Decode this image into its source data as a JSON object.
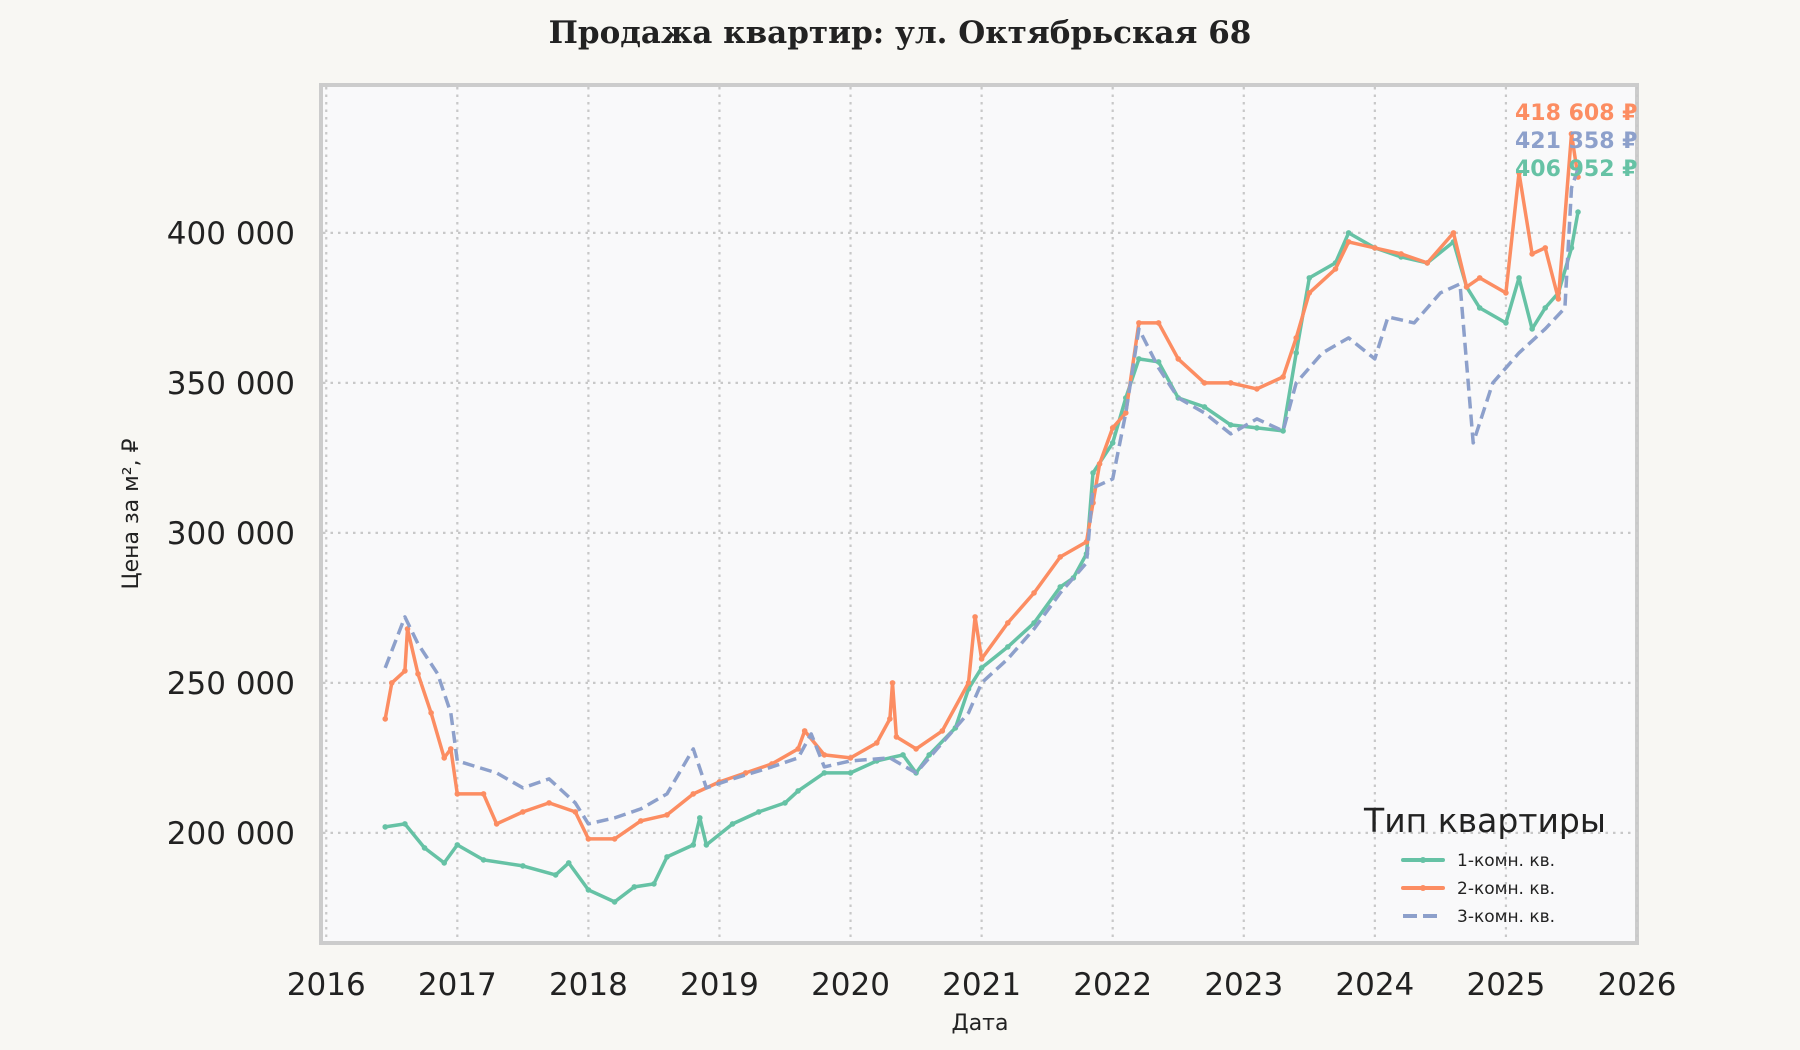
{
  "chart_data": {
    "type": "line",
    "title": "Продажа квартир: ул. Октябрьская 68",
    "xlabel": "Дата",
    "ylabel": "Цена за м², ₽",
    "xlim": [
      2015.96,
      2026.0
    ],
    "ylim": [
      163300,
      449300
    ],
    "x_ticks": [
      "2016",
      "2017",
      "2018",
      "2019",
      "2020",
      "2021",
      "2022",
      "2023",
      "2024",
      "2025",
      "2026"
    ],
    "y_ticks": [
      {
        "value": 200000,
        "label": "200 000"
      },
      {
        "value": 250000,
        "label": "250 000"
      },
      {
        "value": 300000,
        "label": "300 000"
      },
      {
        "value": 350000,
        "label": "350 000"
      },
      {
        "value": 400000,
        "label": "400 000"
      }
    ],
    "grid": true,
    "legend": {
      "title": "Тип квартиры",
      "placement": "lower-right"
    },
    "series": [
      {
        "name": "1-комн. кв.",
        "color": "#66c2a5",
        "style": "solid-marker",
        "end_label": "406 952 ₽",
        "x": [
          2016.45,
          2016.6,
          2016.75,
          2016.9,
          2017.0,
          2017.2,
          2017.5,
          2017.75,
          2017.85,
          2018.0,
          2018.2,
          2018.35,
          2018.5,
          2018.6,
          2018.8,
          2018.85,
          2018.9,
          2019.1,
          2019.3,
          2019.5,
          2019.6,
          2019.8,
          2020.0,
          2020.2,
          2020.4,
          2020.5,
          2020.6,
          2020.8,
          2020.9,
          2021.0,
          2021.2,
          2021.4,
          2021.6,
          2021.7,
          2021.8,
          2021.85,
          2022.0,
          2022.1,
          2022.2,
          2022.35,
          2022.5,
          2022.7,
          2022.9,
          2023.1,
          2023.3,
          2023.4,
          2023.5,
          2023.7,
          2023.8,
          2024.0,
          2024.2,
          2024.4,
          2024.6,
          2024.7,
          2024.8,
          2025.0,
          2025.1,
          2025.2,
          2025.3,
          2025.4,
          2025.5,
          2025.55
        ],
        "y": [
          202000,
          203000,
          195000,
          190000,
          196000,
          191000,
          189000,
          186000,
          190000,
          181000,
          177000,
          182000,
          183000,
          192000,
          196000,
          205000,
          196000,
          203000,
          207000,
          210000,
          214000,
          220000,
          220000,
          224000,
          226000,
          220000,
          226000,
          235000,
          248000,
          255000,
          262000,
          270000,
          282000,
          285000,
          293000,
          320000,
          330000,
          345000,
          358000,
          357000,
          345000,
          342000,
          336000,
          335000,
          334000,
          360000,
          385000,
          390000,
          400000,
          395000,
          392000,
          390000,
          397000,
          382000,
          375000,
          370000,
          385000,
          368000,
          375000,
          380000,
          395000,
          406952
        ]
      },
      {
        "name": "2-комн. кв.",
        "color": "#fc8d62",
        "style": "solid-marker",
        "end_label": "418 608 ₽",
        "x": [
          2016.45,
          2016.5,
          2016.6,
          2016.62,
          2016.7,
          2016.8,
          2016.9,
          2016.95,
          2017.0,
          2017.2,
          2017.3,
          2017.5,
          2017.7,
          2017.9,
          2018.0,
          2018.2,
          2018.4,
          2018.6,
          2018.8,
          2019.0,
          2019.2,
          2019.4,
          2019.6,
          2019.65,
          2019.8,
          2020.0,
          2020.2,
          2020.3,
          2020.32,
          2020.35,
          2020.5,
          2020.7,
          2020.9,
          2020.95,
          2021.0,
          2021.2,
          2021.4,
          2021.6,
          2021.8,
          2021.85,
          2021.9,
          2022.0,
          2022.1,
          2022.2,
          2022.35,
          2022.5,
          2022.7,
          2022.9,
          2023.1,
          2023.3,
          2023.4,
          2023.5,
          2023.7,
          2023.8,
          2024.0,
          2024.2,
          2024.4,
          2024.6,
          2024.7,
          2024.8,
          2025.0,
          2025.1,
          2025.2,
          2025.3,
          2025.4,
          2025.5,
          2025.55
        ],
        "y": [
          238000,
          250000,
          254000,
          268000,
          253000,
          240000,
          225000,
          228000,
          213000,
          213000,
          203000,
          207000,
          210000,
          207000,
          198000,
          198000,
          204000,
          206000,
          213000,
          217000,
          220000,
          223000,
          228000,
          234000,
          226000,
          225000,
          230000,
          238000,
          250000,
          232000,
          228000,
          234000,
          250000,
          272000,
          258000,
          270000,
          280000,
          292000,
          297000,
          310000,
          323000,
          335000,
          340000,
          370000,
          370000,
          358000,
          350000,
          350000,
          348000,
          352000,
          365000,
          380000,
          388000,
          397000,
          395000,
          393000,
          390000,
          400000,
          382000,
          385000,
          380000,
          420000,
          393000,
          395000,
          378000,
          433000,
          418608
        ]
      },
      {
        "name": "3-комн. кв.",
        "color": "#8da0cb",
        "style": "dashed",
        "end_label": "421 358 ₽",
        "x": [
          2016.45,
          2016.6,
          2016.7,
          2016.85,
          2016.95,
          2017.0,
          2017.3,
          2017.5,
          2017.7,
          2017.9,
          2018.0,
          2018.2,
          2018.4,
          2018.6,
          2018.8,
          2018.9,
          2019.1,
          2019.4,
          2019.6,
          2019.7,
          2019.8,
          2020.0,
          2020.3,
          2020.5,
          2020.7,
          2020.9,
          2021.0,
          2021.2,
          2021.4,
          2021.6,
          2021.8,
          2021.85,
          2022.0,
          2022.1,
          2022.2,
          2022.35,
          2022.5,
          2022.7,
          2022.9,
          2023.1,
          2023.3,
          2023.4,
          2023.6,
          2023.8,
          2024.0,
          2024.1,
          2024.3,
          2024.5,
          2024.65,
          2024.75,
          2024.9,
          2025.1,
          2025.3,
          2025.45,
          2025.5,
          2025.55
        ],
        "y": [
          255000,
          272000,
          263000,
          253000,
          240000,
          224000,
          220000,
          215000,
          218000,
          210000,
          203000,
          205000,
          208000,
          213000,
          228000,
          215000,
          218000,
          222000,
          225000,
          233000,
          222000,
          224000,
          225000,
          220000,
          230000,
          240000,
          250000,
          258000,
          268000,
          280000,
          290000,
          315000,
          318000,
          340000,
          368000,
          355000,
          345000,
          340000,
          333000,
          338000,
          334000,
          350000,
          360000,
          365000,
          358000,
          372000,
          370000,
          380000,
          383000,
          330000,
          350000,
          360000,
          368000,
          375000,
          415000,
          421358
        ]
      }
    ]
  }
}
